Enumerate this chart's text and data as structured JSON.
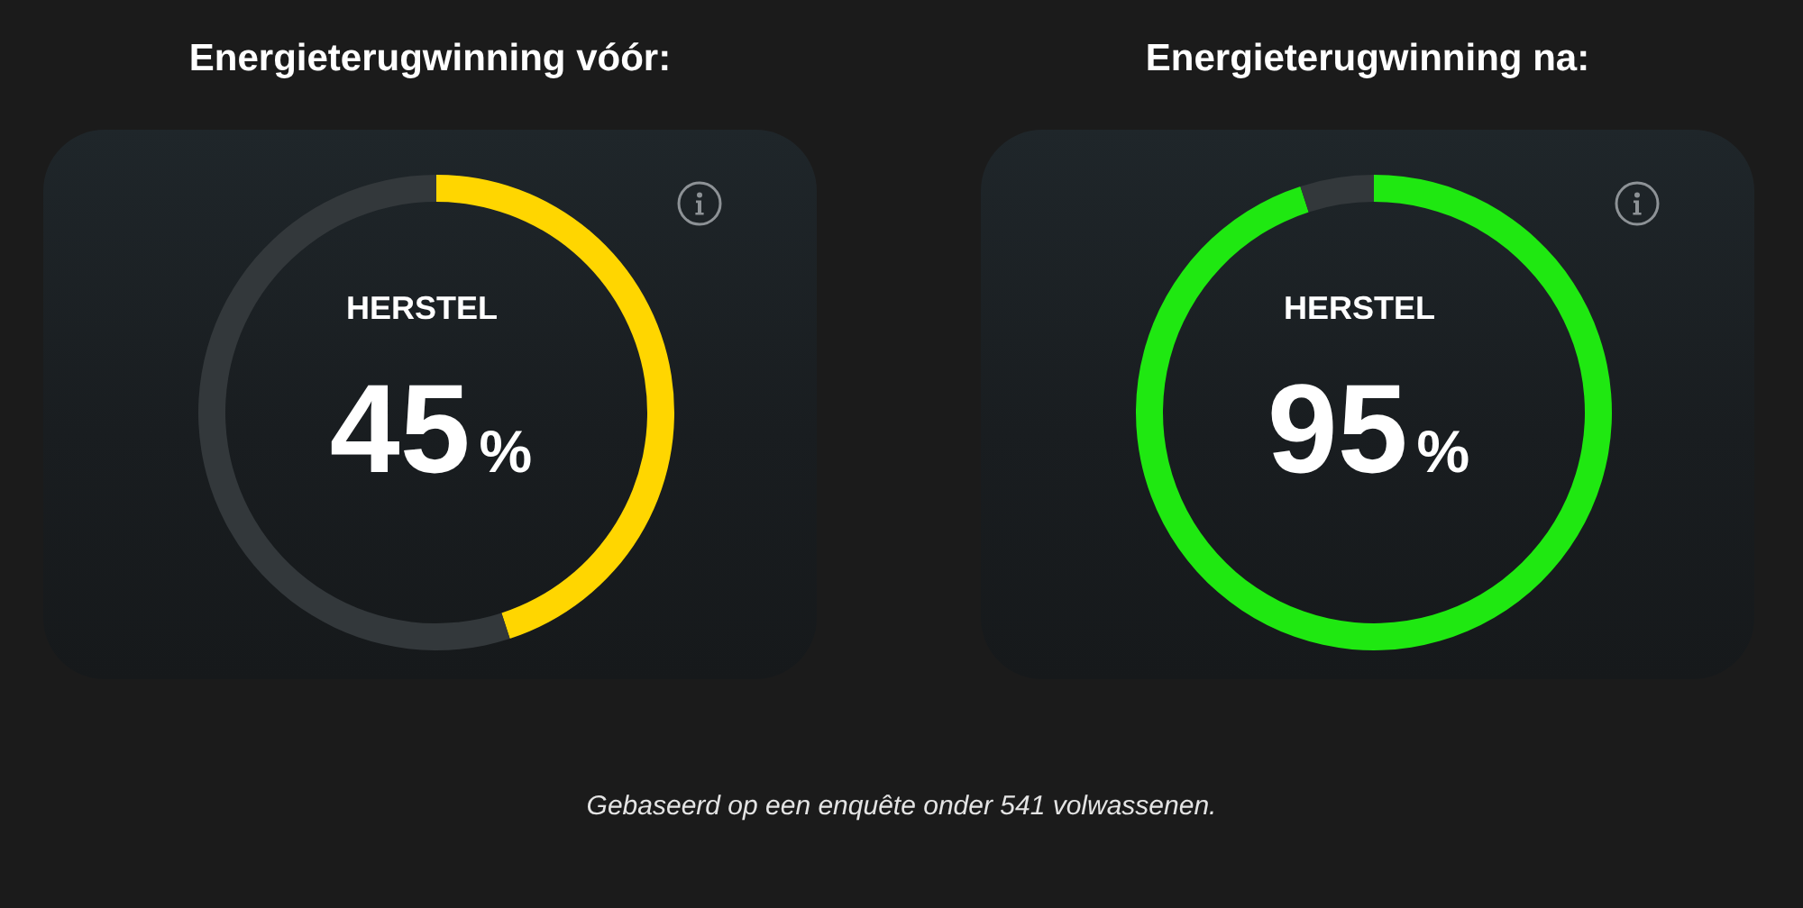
{
  "chart_data": [
    {
      "type": "donut",
      "title": "Energieterugwinning vóór:",
      "subtitle": "HERSTEL",
      "categories": [
        null,
        null
      ],
      "values": [
        45,
        55
      ],
      "colors": [
        "#ffd600",
        "#33383b"
      ],
      "value_labels": [
        "45%",
        null
      ]
    },
    {
      "type": "donut",
      "title": "Energieterugwinning na:",
      "subtitle": "HERSTEL",
      "categories": [
        null,
        null
      ],
      "values": [
        95,
        5
      ],
      "colors": [
        "#1fe811",
        "#33383b"
      ],
      "value_labels": [
        "95%",
        null
      ],
      "annotations": [
        "Gebaseerd op een enquête onder 541 volwassenen."
      ]
    }
  ]
}
